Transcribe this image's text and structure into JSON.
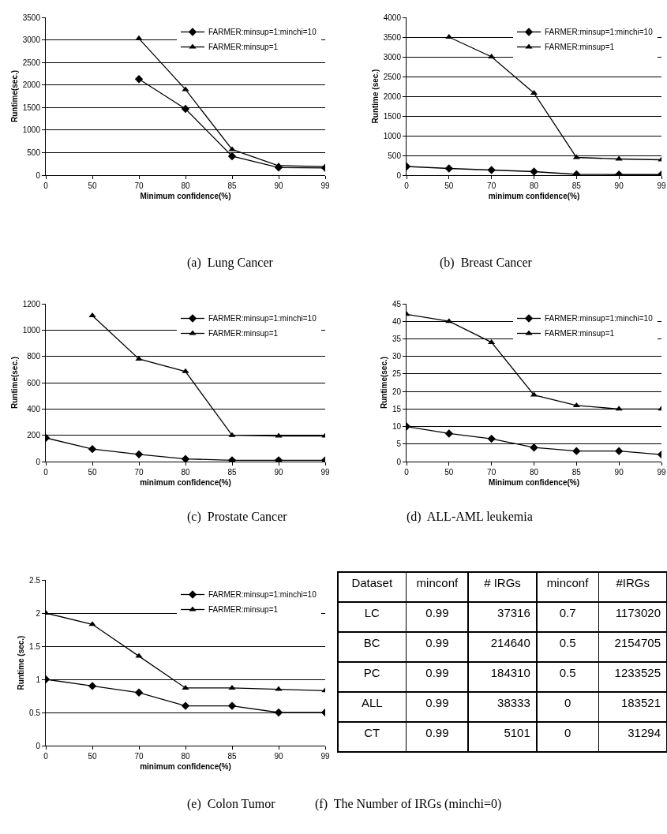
{
  "chart_data": [
    {
      "type": "line",
      "title": "(a)  Lung Cancer",
      "xlabel": "Minimum confidence(%)",
      "ylabel": "Runtime(sec.)",
      "categories": [
        "0",
        "50",
        "70",
        "80",
        "85",
        "90",
        "99"
      ],
      "ylim": [
        0,
        3500
      ],
      "yticks": [
        0,
        500,
        1000,
        1500,
        2000,
        2500,
        3000,
        3500
      ],
      "grid": "y",
      "legend": "top right",
      "series": [
        {
          "name": "FARMER:minsup=1:minchi=10",
          "color": "#000000",
          "marker": "diamond",
          "values": [
            null,
            null,
            2130,
            1470,
            420,
            170,
            160
          ]
        },
        {
          "name": "FARMER:minsup=1",
          "color": "#000000",
          "marker": "triangle",
          "values": [
            null,
            null,
            3030,
            1900,
            570,
            210,
            190
          ]
        }
      ]
    },
    {
      "type": "line",
      "title": "(b)  Breast Cancer",
      "xlabel": "minimum confidence(%)",
      "ylabel": "Runtime (sec.)",
      "categories": [
        "0",
        "50",
        "70",
        "80",
        "85",
        "90",
        "99"
      ],
      "ylim": [
        0,
        4000
      ],
      "yticks": [
        0,
        500,
        1000,
        1500,
        2000,
        2500,
        3000,
        3500,
        4000
      ],
      "grid": "y",
      "legend": "top right",
      "series": [
        {
          "name": "FARMER:minsup=1:minchi=10",
          "color": "#000000",
          "marker": "diamond",
          "values": [
            220,
            170,
            130,
            90,
            20,
            15,
            15
          ]
        },
        {
          "name": "FARMER:minsup=1",
          "color": "#000000",
          "marker": "triangle",
          "values": [
            null,
            3500,
            3000,
            2080,
            450,
            410,
            390
          ]
        }
      ]
    },
    {
      "type": "line",
      "title": "(c)  Prostate Cancer",
      "xlabel": "minimum confidence(%)",
      "ylabel": "Runtime(sec.)",
      "categories": [
        "0",
        "50",
        "70",
        "80",
        "85",
        "90",
        "99"
      ],
      "ylim": [
        0,
        1200
      ],
      "yticks": [
        0,
        200,
        400,
        600,
        800,
        1000,
        1200
      ],
      "grid": "y",
      "legend": "top right",
      "series": [
        {
          "name": "FARMER:minsup=1:minchi=10",
          "color": "#000000",
          "marker": "diamond",
          "values": [
            180,
            95,
            55,
            20,
            10,
            10,
            10
          ]
        },
        {
          "name": "FARMER:minsup=1",
          "color": "#000000",
          "marker": "triangle",
          "values": [
            null,
            1110,
            780,
            685,
            200,
            195,
            195
          ]
        }
      ]
    },
    {
      "type": "line",
      "title": "(d)  ALL-AML leukemia",
      "xlabel": "Minimum confidence(%)",
      "ylabel": "Runtime(sec.)",
      "categories": [
        "0",
        "50",
        "70",
        "80",
        "85",
        "90",
        "99"
      ],
      "ylim": [
        0,
        45
      ],
      "yticks": [
        0,
        5,
        10,
        15,
        20,
        25,
        30,
        35,
        40,
        45
      ],
      "grid": "y",
      "legend": "top right",
      "series": [
        {
          "name": "FARMER:minsup=1:minchi=10",
          "color": "#000000",
          "marker": "diamond",
          "values": [
            10,
            8,
            6.5,
            4,
            3,
            3,
            2
          ]
        },
        {
          "name": "FARMER:minsup=1",
          "color": "#000000",
          "marker": "triangle",
          "values": [
            42,
            40,
            34,
            19,
            16,
            15,
            15
          ]
        }
      ]
    },
    {
      "type": "line",
      "title": "(e)  Colon Tumor",
      "xlabel": "minimum confidence(%)",
      "ylabel": "Runtime (sec.)",
      "categories": [
        "0",
        "50",
        "70",
        "80",
        "85",
        "90",
        "99"
      ],
      "ylim": [
        0,
        2.5
      ],
      "yticks": [
        0,
        0.5,
        1,
        1.5,
        2,
        2.5
      ],
      "grid": "y",
      "legend": "top right",
      "series": [
        {
          "name": "FARMER:minsup=1:minchi=10",
          "color": "#000000",
          "marker": "diamond",
          "values": [
            1,
            0.9,
            0.8,
            0.6,
            0.6,
            0.5,
            0.5
          ]
        },
        {
          "name": "FARMER:minsup=1",
          "color": "#000000",
          "marker": "triangle",
          "values": [
            2,
            1.83,
            1.35,
            0.87,
            0.87,
            0.85,
            0.83
          ]
        }
      ]
    },
    {
      "type": "other",
      "title": "(f)  The Number of IRGs (minchi=0)",
      "categories": [
        "Dataset",
        "minconf",
        "# IRGs",
        "minconf",
        "#IRGs"
      ],
      "cell_labels": [
        [
          "LC",
          "0.99",
          "37316",
          "0.7",
          "1173020"
        ],
        [
          "BC",
          "0.99",
          "214640",
          "0.5",
          "2154705"
        ],
        [
          "PC",
          "0.99",
          "184310",
          "0.5",
          "1233525"
        ],
        [
          "ALL",
          "0.99",
          "38333",
          "0",
          "183521"
        ],
        [
          "CT",
          "0.99",
          "5101",
          "0",
          "31294"
        ]
      ]
    }
  ]
}
